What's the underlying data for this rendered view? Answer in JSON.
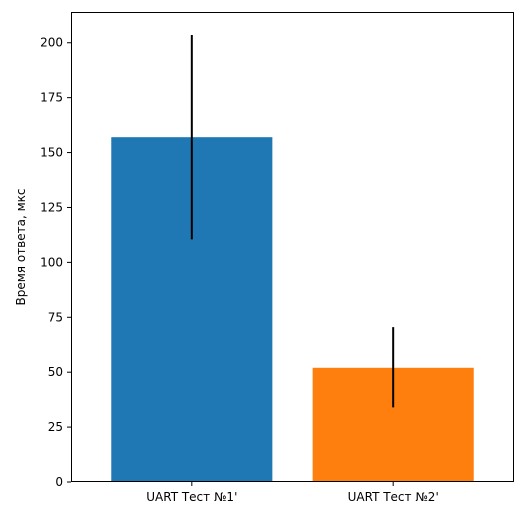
{
  "chart_data": {
    "type": "bar",
    "title": "",
    "xlabel": "",
    "ylabel": "Время ответа, мкс",
    "categories": [
      "UART Тест №1'",
      "UART Тест №2'"
    ],
    "series": [
      {
        "values": [
          157,
          52
        ],
        "error_low": [
          110.5,
          34
        ],
        "error_high": [
          203.5,
          70.5
        ],
        "colors": [
          "#1f77b4",
          "#ff7f0e"
        ]
      }
    ],
    "ylim": [
      0,
      214
    ],
    "yticks": [
      0,
      25,
      50,
      75,
      100,
      125,
      150,
      175,
      200
    ],
    "error_bar_color": "#000000",
    "grid": false,
    "legend": "none"
  }
}
